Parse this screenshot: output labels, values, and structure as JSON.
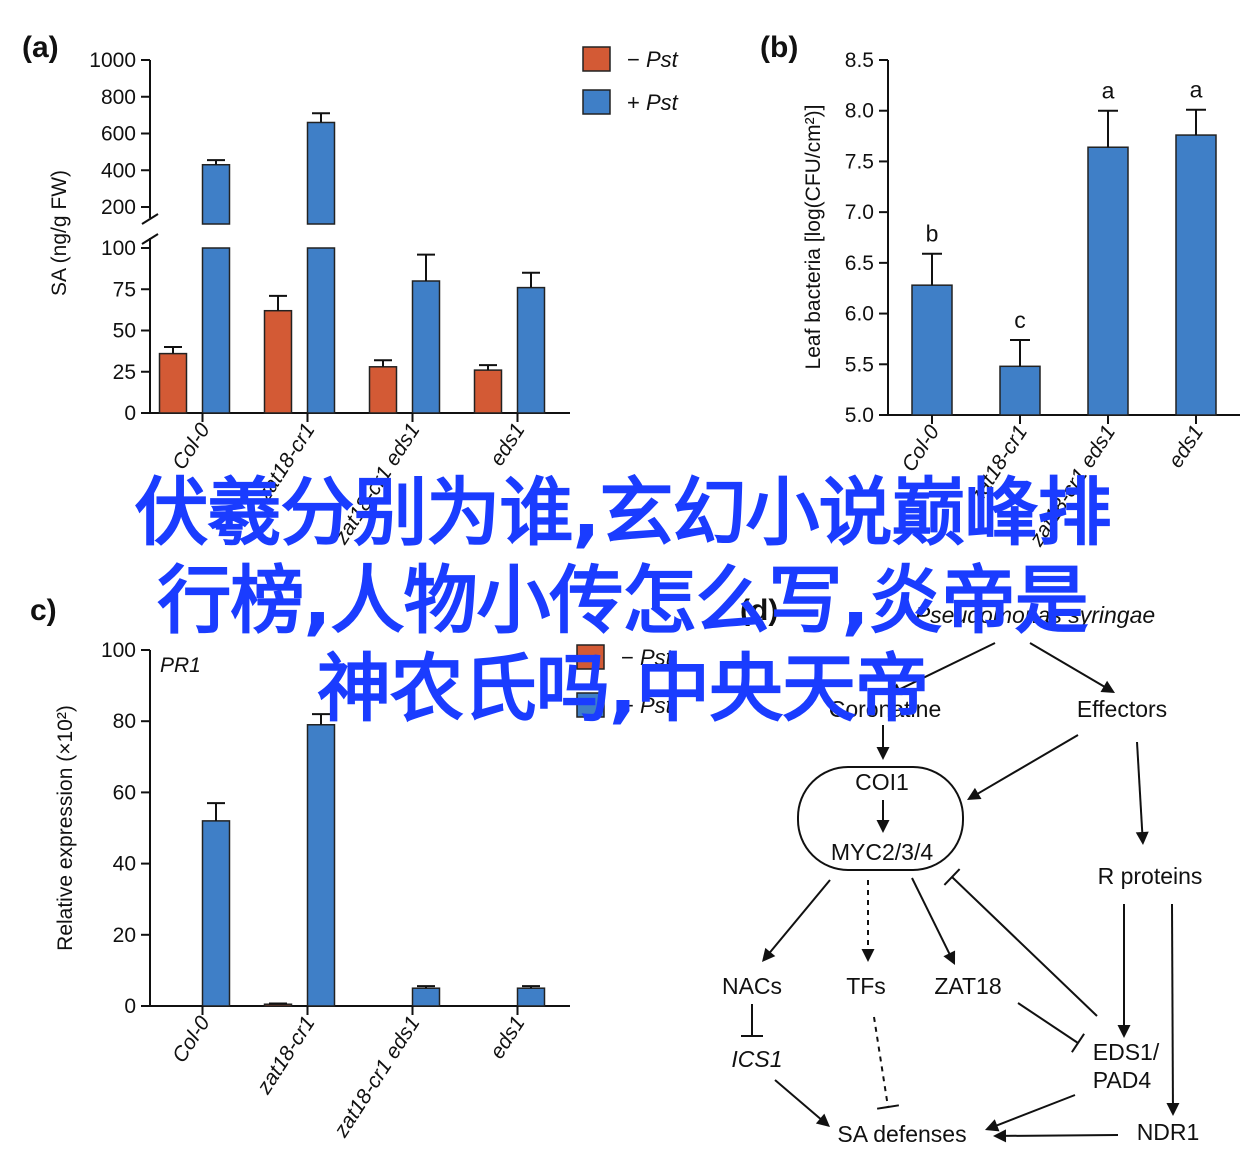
{
  "overlay_text": [
    "伏羲分别为谁,玄幻小说巅峰排",
    "行榜,人物小传怎么写,炎帝是",
    "神农氏吗,中央天帝"
  ],
  "colors": {
    "minus": "#d35a35",
    "plus": "#3f7fc7",
    "overlay": "#1a3cff"
  },
  "chart_data": [
    {
      "panel": "(a)",
      "type": "bar",
      "ylabel": "SA (ng/g FW)",
      "categories": [
        "Col-0",
        "zat18-cr1",
        "zat18-cr1 eds1",
        "eds1"
      ],
      "series": [
        {
          "name": "−Pst",
          "values": [
            36,
            62,
            28,
            26
          ],
          "errors": [
            4,
            9,
            4,
            3
          ]
        },
        {
          "name": "+Pst",
          "values": [
            430,
            660,
            80,
            76
          ],
          "errors": [
            25,
            50,
            16,
            9
          ]
        }
      ],
      "ylim_lower": [
        0,
        100
      ],
      "ylim_upper": [
        200,
        1000
      ],
      "yticks_lower": [
        "0",
        "25",
        "50",
        "75",
        "100"
      ],
      "yticks_upper": [
        "200",
        "400",
        "600",
        "800",
        "1000"
      ],
      "axis_break": true,
      "legend_position": "top-right"
    },
    {
      "panel": "(b)",
      "type": "bar",
      "ylabel": "Leaf bacteria [log(CFU/cm²)]",
      "categories": [
        "Col-0",
        "zat18-cr1",
        "zat18-cr1 eds1",
        "eds1"
      ],
      "values": [
        6.28,
        5.48,
        7.64,
        7.76
      ],
      "errors": [
        0.31,
        0.26,
        0.36,
        0.25
      ],
      "significance": [
        "b",
        "c",
        "a",
        "a"
      ],
      "ylim": [
        5.0,
        8.5
      ],
      "yticks": [
        "5.0",
        "5.5",
        "6.0",
        "6.5",
        "7.0",
        "7.5",
        "8.0",
        "8.5"
      ]
    },
    {
      "panel": "c)",
      "type": "bar",
      "subtitle": "PR1",
      "ylabel": "Relative expression (×10²)",
      "categories": [
        "Col-0",
        "zat18-cr1",
        "zat18-cr1 eds1",
        "eds1"
      ],
      "series": [
        {
          "name": "−Pst",
          "values": [
            0,
            0.5,
            0,
            0
          ],
          "errors": [
            0,
            0.2,
            0,
            0
          ]
        },
        {
          "name": "+Pst",
          "values": [
            52,
            79,
            5,
            5
          ],
          "errors": [
            5,
            3,
            0.6,
            0.6
          ]
        }
      ],
      "ylim": [
        0,
        100
      ],
      "yticks": [
        "0",
        "20",
        "40",
        "60",
        "80",
        "100"
      ],
      "legend_position": "top-right"
    },
    {
      "panel": "(d)",
      "type": "diagram",
      "nodes": {
        "pst": "Pseudomonas syringae",
        "coronatine": "Coronatine",
        "effectors": "Effectors",
        "coi1": "COI1",
        "myc": "MYC2/3/4",
        "rproteins": "R proteins",
        "nacs": "NACs",
        "tfs": "TFs",
        "zat18": "ZAT18",
        "ics1": "ICS1",
        "eds1": "EDS1/",
        "pad4": "PAD4",
        "sadef": "SA defenses",
        "ndr1": "NDR1"
      }
    }
  ]
}
